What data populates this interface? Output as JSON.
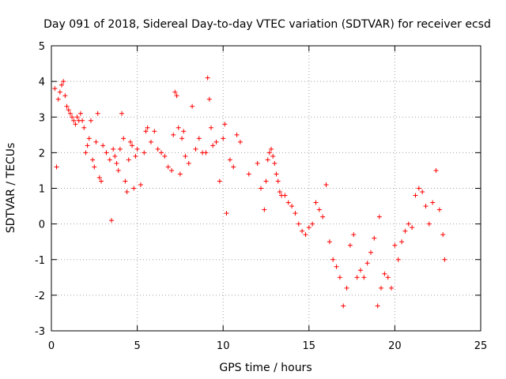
{
  "chart_data": {
    "type": "scatter",
    "title": "Day 091 of 2018, Sidereal Day-to-day VTEC variation (SDTVAR) for receiver ecsd",
    "xlabel": "GPS time / hours",
    "ylabel": "SDTVAR / TECUs",
    "xlim": [
      0,
      25
    ],
    "ylim": [
      -3,
      5
    ],
    "xticks": [
      "0",
      "5",
      "10",
      "15",
      "20",
      "25"
    ],
    "yticks": [
      "-3",
      "-2",
      "-1",
      "0",
      "1",
      "2",
      "3",
      "4",
      "5"
    ],
    "grid": true,
    "marker": "+",
    "color": "#ff0000",
    "series": [
      {
        "name": "ecsd",
        "x": [
          0.2,
          0.3,
          0.4,
          0.5,
          0.6,
          0.7,
          0.8,
          0.9,
          1.0,
          1.1,
          1.2,
          1.3,
          1.4,
          1.5,
          1.6,
          1.7,
          1.8,
          1.9,
          2.0,
          2.1,
          2.2,
          2.3,
          2.4,
          2.5,
          2.6,
          2.7,
          2.8,
          2.9,
          3.0,
          3.2,
          3.4,
          3.5,
          3.6,
          3.7,
          3.8,
          3.9,
          4.0,
          4.1,
          4.2,
          4.3,
          4.4,
          4.5,
          4.6,
          4.7,
          4.8,
          4.9,
          5.0,
          5.2,
          5.4,
          5.5,
          5.6,
          5.8,
          6.0,
          6.2,
          6.4,
          6.6,
          6.8,
          7.0,
          7.1,
          7.2,
          7.3,
          7.4,
          7.5,
          7.6,
          7.7,
          7.8,
          8.0,
          8.2,
          8.4,
          8.6,
          8.8,
          9.0,
          9.1,
          9.2,
          9.3,
          9.4,
          9.6,
          9.8,
          10.0,
          10.1,
          10.2,
          10.4,
          10.6,
          10.8,
          11.0,
          11.5,
          12.0,
          12.2,
          12.4,
          12.5,
          12.6,
          12.7,
          12.8,
          12.9,
          13.0,
          13.1,
          13.2,
          13.3,
          13.4,
          13.6,
          13.8,
          14.0,
          14.2,
          14.4,
          14.6,
          14.8,
          15.0,
          15.2,
          15.4,
          15.6,
          15.8,
          16.0,
          16.2,
          16.4,
          16.6,
          16.8,
          17.0,
          17.2,
          17.4,
          17.6,
          17.8,
          18.0,
          18.2,
          18.4,
          18.6,
          18.8,
          19.0,
          19.1,
          19.2,
          19.4,
          19.6,
          19.8,
          20.0,
          20.2,
          20.4,
          20.6,
          20.8,
          21.0,
          21.2,
          21.4,
          21.6,
          21.8,
          22.0,
          22.2,
          22.4,
          22.6,
          22.8,
          22.9
        ],
        "y": [
          3.8,
          1.6,
          3.5,
          3.7,
          3.9,
          4.0,
          3.6,
          3.3,
          3.2,
          3.1,
          3.0,
          2.9,
          2.8,
          3.0,
          2.9,
          3.1,
          2.9,
          2.7,
          2.0,
          2.2,
          2.4,
          2.9,
          1.8,
          1.6,
          2.3,
          3.1,
          1.3,
          1.2,
          2.2,
          2.0,
          1.8,
          0.1,
          2.1,
          1.9,
          1.7,
          1.5,
          2.1,
          3.1,
          2.4,
          1.2,
          0.9,
          1.8,
          2.3,
          2.2,
          1.0,
          1.9,
          2.1,
          1.1,
          2.0,
          2.6,
          2.7,
          2.3,
          2.6,
          2.1,
          2.0,
          1.9,
          1.6,
          1.5,
          2.5,
          3.7,
          3.6,
          2.7,
          1.4,
          2.4,
          2.6,
          1.9,
          1.7,
          3.3,
          2.1,
          2.4,
          2.0,
          2.0,
          4.1,
          3.5,
          2.7,
          2.2,
          2.3,
          1.2,
          2.4,
          2.8,
          0.3,
          1.8,
          1.6,
          2.5,
          2.3,
          1.4,
          1.7,
          1.0,
          0.4,
          1.2,
          1.8,
          2.0,
          2.1,
          1.9,
          1.7,
          1.4,
          1.2,
          0.9,
          0.8,
          0.8,
          0.6,
          0.5,
          0.3,
          0.0,
          -0.2,
          -0.3,
          -0.1,
          0.0,
          0.6,
          0.4,
          0.2,
          1.1,
          -0.5,
          -1.0,
          -1.2,
          -1.5,
          -2.3,
          -1.8,
          -0.6,
          -0.3,
          -1.5,
          -1.3,
          -1.5,
          -1.1,
          -0.8,
          -0.4,
          -2.3,
          0.2,
          -1.8,
          -1.4,
          -1.5,
          -1.8,
          -0.6,
          -1.0,
          -0.5,
          -0.2,
          0.0,
          -0.1,
          0.8,
          1.0,
          0.9,
          0.5,
          0.0,
          0.6,
          1.5,
          0.4,
          -0.3,
          -1.0
        ]
      }
    ]
  }
}
